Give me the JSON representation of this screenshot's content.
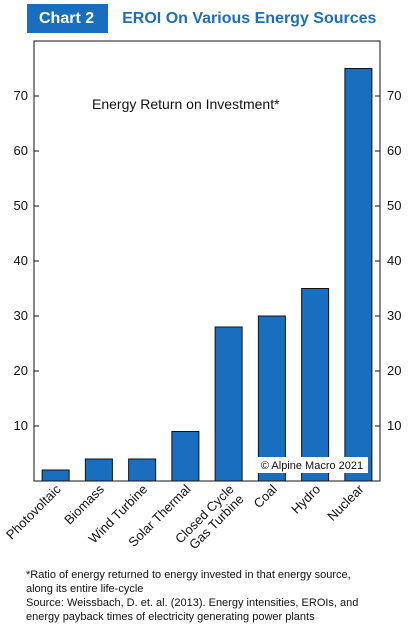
{
  "header": {
    "badge": "Chart 2",
    "title": "EROI On Various Energy Sources"
  },
  "footnote": {
    "line1": "*Ratio of energy returned to energy invested in that energy source,",
    "line2": "along its entire life-cycle",
    "line3": "Source: Weissbach, D. et. al. (2013). Energy intensities, EROIs, and",
    "line4": "energy payback times of electricity generating power plants"
  },
  "chart_data": {
    "type": "bar",
    "title": "Energy Return on Investment*",
    "categories": [
      "Photovoltaic",
      "Biomass",
      "Wind Turbine",
      "Solar Thermal",
      "Closed Cycle Gas Turbine",
      "Coal",
      "Hydro",
      "Nuclear"
    ],
    "category_label_lines": [
      [
        "Photovoltaic"
      ],
      [
        "Biomass"
      ],
      [
        "Wind Turbine"
      ],
      [
        "Solar Thermal"
      ],
      [
        "Closed Cycle",
        "Gas Turbine"
      ],
      [
        "Coal"
      ],
      [
        "Hydro"
      ],
      [
        "Nuclear"
      ]
    ],
    "values": [
      2,
      4,
      4,
      9,
      28,
      30,
      35,
      75
    ],
    "ylim": [
      0,
      80
    ],
    "yticks": [
      10,
      20,
      30,
      40,
      50,
      60,
      70
    ],
    "ytick_labels": [
      "10",
      "20",
      "30",
      "40",
      "50",
      "60",
      "70"
    ],
    "y_axis_sides": [
      "left",
      "right"
    ],
    "bar_color": "#1a6ec0",
    "grid": false,
    "copyright": "© Alpine Macro 2021"
  }
}
